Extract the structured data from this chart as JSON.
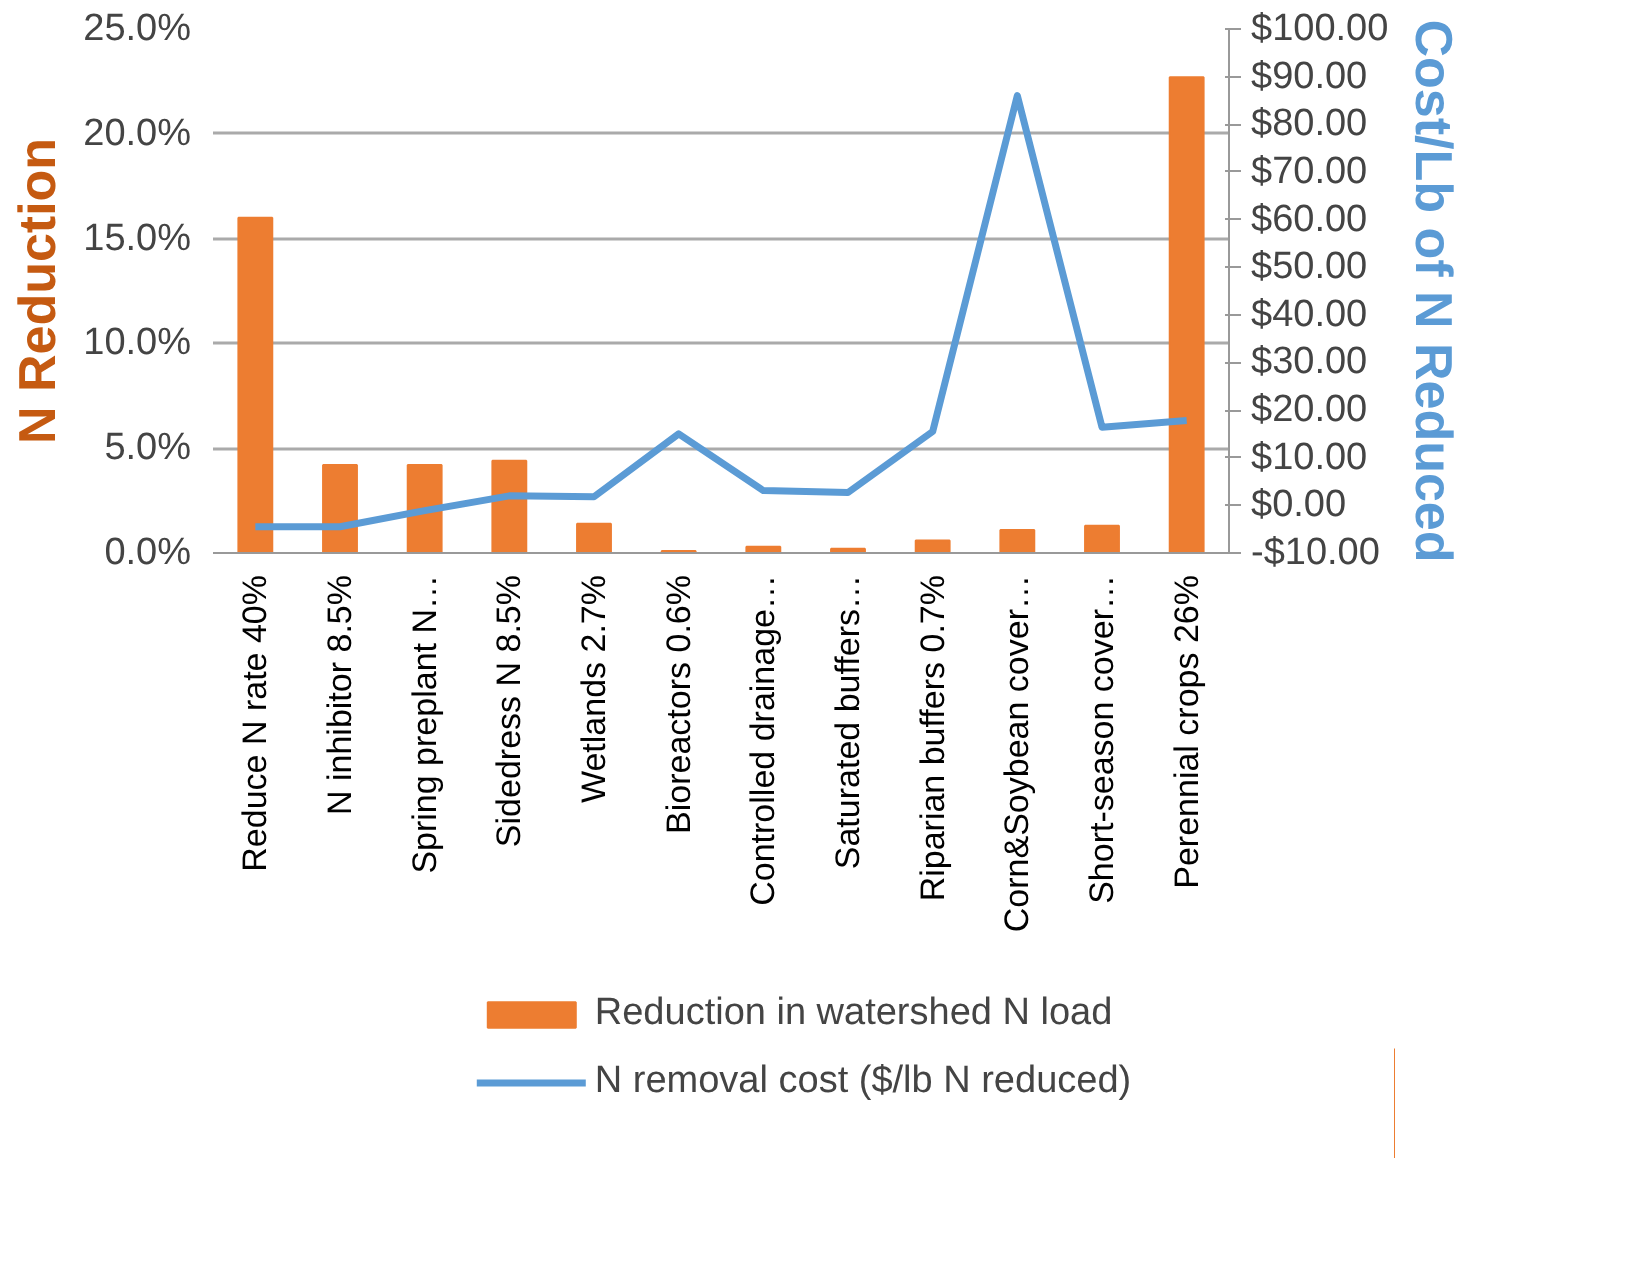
{
  "chart_data": {
    "type": "bar",
    "ylabel": "N Reduction",
    "y2label": "Cost/Lb of N Reduced",
    "categories": [
      "Reduce N rate 40%",
      "N inhibitor 8.5%",
      "Spring preplant N…",
      "Sidedress N 8.5%",
      "Wetlands 2.7%",
      "Bioreactors 0.6%",
      "Controlled drainage…",
      "Saturated buffers…",
      "Riparian buffers 0.7%",
      "Corn&Soybean cover…",
      "Short-season cover…",
      "Perennial crops 26%"
    ],
    "series": [
      {
        "name": "Reduction in watershed N load",
        "color": "#ed7d31",
        "values": [
          16.0,
          4.2,
          4.2,
          4.4,
          1.4,
          0.1,
          0.3,
          0.2,
          0.6,
          1.1,
          1.3,
          22.7
        ]
      },
      {
        "name": "N removal cost ($/lb N reduced)",
        "color": "#5b9bd5",
        "type": "line",
        "axis": "y2",
        "values": [
          -4.5,
          -4.5,
          -1.1,
          2.0,
          1.8,
          15.0,
          3.1,
          2.7,
          15.5,
          86.0,
          16.4,
          17.8
        ]
      }
    ],
    "ylim": [
      0,
      25
    ],
    "yticks": [
      {
        "value": 0,
        "label": "0.0%"
      },
      {
        "value": 5,
        "label": "5.0%"
      },
      {
        "value": 10,
        "label": "10.0%"
      },
      {
        "value": 15,
        "label": "15.0%"
      },
      {
        "value": 20,
        "label": "20.0%"
      },
      {
        "value": 25,
        "label": "25.0%"
      }
    ],
    "y2lim": [
      -10,
      100
    ],
    "y2ticks": [
      {
        "value": -10,
        "label": "-$10.00"
      },
      {
        "value": 0,
        "label": "$0.00"
      },
      {
        "value": 10,
        "label": "$10.00"
      },
      {
        "value": 20,
        "label": "$20.00"
      },
      {
        "value": 30,
        "label": "$30.00"
      },
      {
        "value": 40,
        "label": "$40.00"
      },
      {
        "value": 50,
        "label": "$50.00"
      },
      {
        "value": 60,
        "label": "$60.00"
      },
      {
        "value": 70,
        "label": "$70.00"
      },
      {
        "value": 80,
        "label": "$80.00"
      },
      {
        "value": 90,
        "label": "$90.00"
      },
      {
        "value": 100,
        "label": "$100.00"
      }
    ],
    "grid": "y",
    "legend": "bottom",
    "marker": "none",
    "line_style": "solid"
  }
}
